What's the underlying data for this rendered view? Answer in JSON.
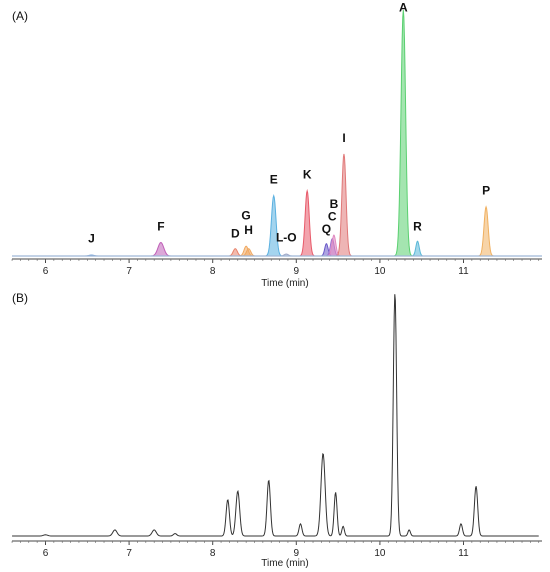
{
  "chart_data": [
    {
      "type": "line",
      "panel_label": "(A)",
      "xlabel": "Time (min)",
      "ylabel": "",
      "xlim": [
        5.6,
        11.9
      ],
      "ylim": [
        0,
        1.0
      ],
      "x_ticks": [
        "6",
        "7",
        "8",
        "9",
        "10",
        "11"
      ],
      "grid": false,
      "series": [
        {
          "name": "J",
          "color": "#7FA8D8",
          "peak_time": 6.55,
          "height": 0.004,
          "width": 0.06,
          "label_y": 0.03
        },
        {
          "name": "F",
          "color": "#C060B8",
          "peak_time": 7.38,
          "height": 0.055,
          "width": 0.07,
          "label_y": 0.08
        },
        {
          "name": "D",
          "color": "#E8826A",
          "peak_time": 8.27,
          "height": 0.03,
          "width": 0.05,
          "label_y": 0.05
        },
        {
          "name": "G",
          "color": "#F0A860",
          "peak_time": 8.4,
          "height": 0.04,
          "width": 0.05,
          "label_y": 0.125
        },
        {
          "name": "H",
          "color": "#F0A860",
          "peak_time": 8.43,
          "height": 0.03,
          "width": 0.05,
          "label_y": 0.065
        },
        {
          "name": "E",
          "color": "#5AB0E0",
          "peak_time": 8.73,
          "height": 0.245,
          "width": 0.055,
          "label_y": 0.27
        },
        {
          "name": "L-O",
          "color": "#9EA8C8",
          "peak_time": 8.88,
          "height": 0.008,
          "width": 0.05,
          "label_y": 0.035
        },
        {
          "name": "K",
          "color": "#E85A6A",
          "peak_time": 9.13,
          "height": 0.265,
          "width": 0.05,
          "label_y": 0.29
        },
        {
          "name": "Q",
          "color": "#6A5AC8",
          "peak_time": 9.36,
          "height": 0.05,
          "width": 0.04,
          "label_y": 0.07
        },
        {
          "name": "C",
          "color": "#A070D0",
          "peak_time": 9.43,
          "height": 0.07,
          "width": 0.045,
          "label_y": 0.12
        },
        {
          "name": "B",
          "color": "#E088C0",
          "peak_time": 9.45,
          "height": 0.085,
          "width": 0.045,
          "label_y": 0.17
        },
        {
          "name": "I",
          "color": "#E07878",
          "peak_time": 9.57,
          "height": 0.415,
          "width": 0.05,
          "label_y": 0.44
        },
        {
          "name": "A",
          "color": "#5AD070",
          "peak_time": 10.28,
          "height": 1.0,
          "width": 0.055,
          "label_y": 0.97
        },
        {
          "name": "R",
          "color": "#5AB8D8",
          "peak_time": 10.45,
          "height": 0.06,
          "width": 0.04,
          "label_y": 0.08
        },
        {
          "name": "P",
          "color": "#F0B060",
          "peak_time": 11.27,
          "height": 0.2,
          "width": 0.05,
          "label_y": 0.225
        }
      ]
    },
    {
      "type": "line",
      "panel_label": "(B)",
      "xlabel": "Time (min)",
      "ylabel": "",
      "xlim": [
        5.6,
        11.9
      ],
      "ylim": [
        0,
        1.0
      ],
      "x_ticks": [
        "6",
        "7",
        "8",
        "9",
        "10",
        "11"
      ],
      "grid": false,
      "series": [
        {
          "color": "#333333",
          "peaks": [
            {
              "x": 6.0,
              "y": 0.005,
              "w": 0.05
            },
            {
              "x": 6.83,
              "y": 0.025,
              "w": 0.05
            },
            {
              "x": 7.3,
              "y": 0.025,
              "w": 0.05
            },
            {
              "x": 7.55,
              "y": 0.01,
              "w": 0.04
            },
            {
              "x": 8.18,
              "y": 0.15,
              "w": 0.04
            },
            {
              "x": 8.3,
              "y": 0.185,
              "w": 0.045
            },
            {
              "x": 8.67,
              "y": 0.23,
              "w": 0.04
            },
            {
              "x": 9.05,
              "y": 0.05,
              "w": 0.035
            },
            {
              "x": 9.32,
              "y": 0.34,
              "w": 0.05
            },
            {
              "x": 9.47,
              "y": 0.18,
              "w": 0.035
            },
            {
              "x": 9.56,
              "y": 0.04,
              "w": 0.03
            },
            {
              "x": 10.18,
              "y": 1.0,
              "w": 0.04
            },
            {
              "x": 10.35,
              "y": 0.025,
              "w": 0.03
            },
            {
              "x": 10.97,
              "y": 0.05,
              "w": 0.035
            },
            {
              "x": 11.15,
              "y": 0.205,
              "w": 0.04
            }
          ]
        }
      ]
    }
  ]
}
